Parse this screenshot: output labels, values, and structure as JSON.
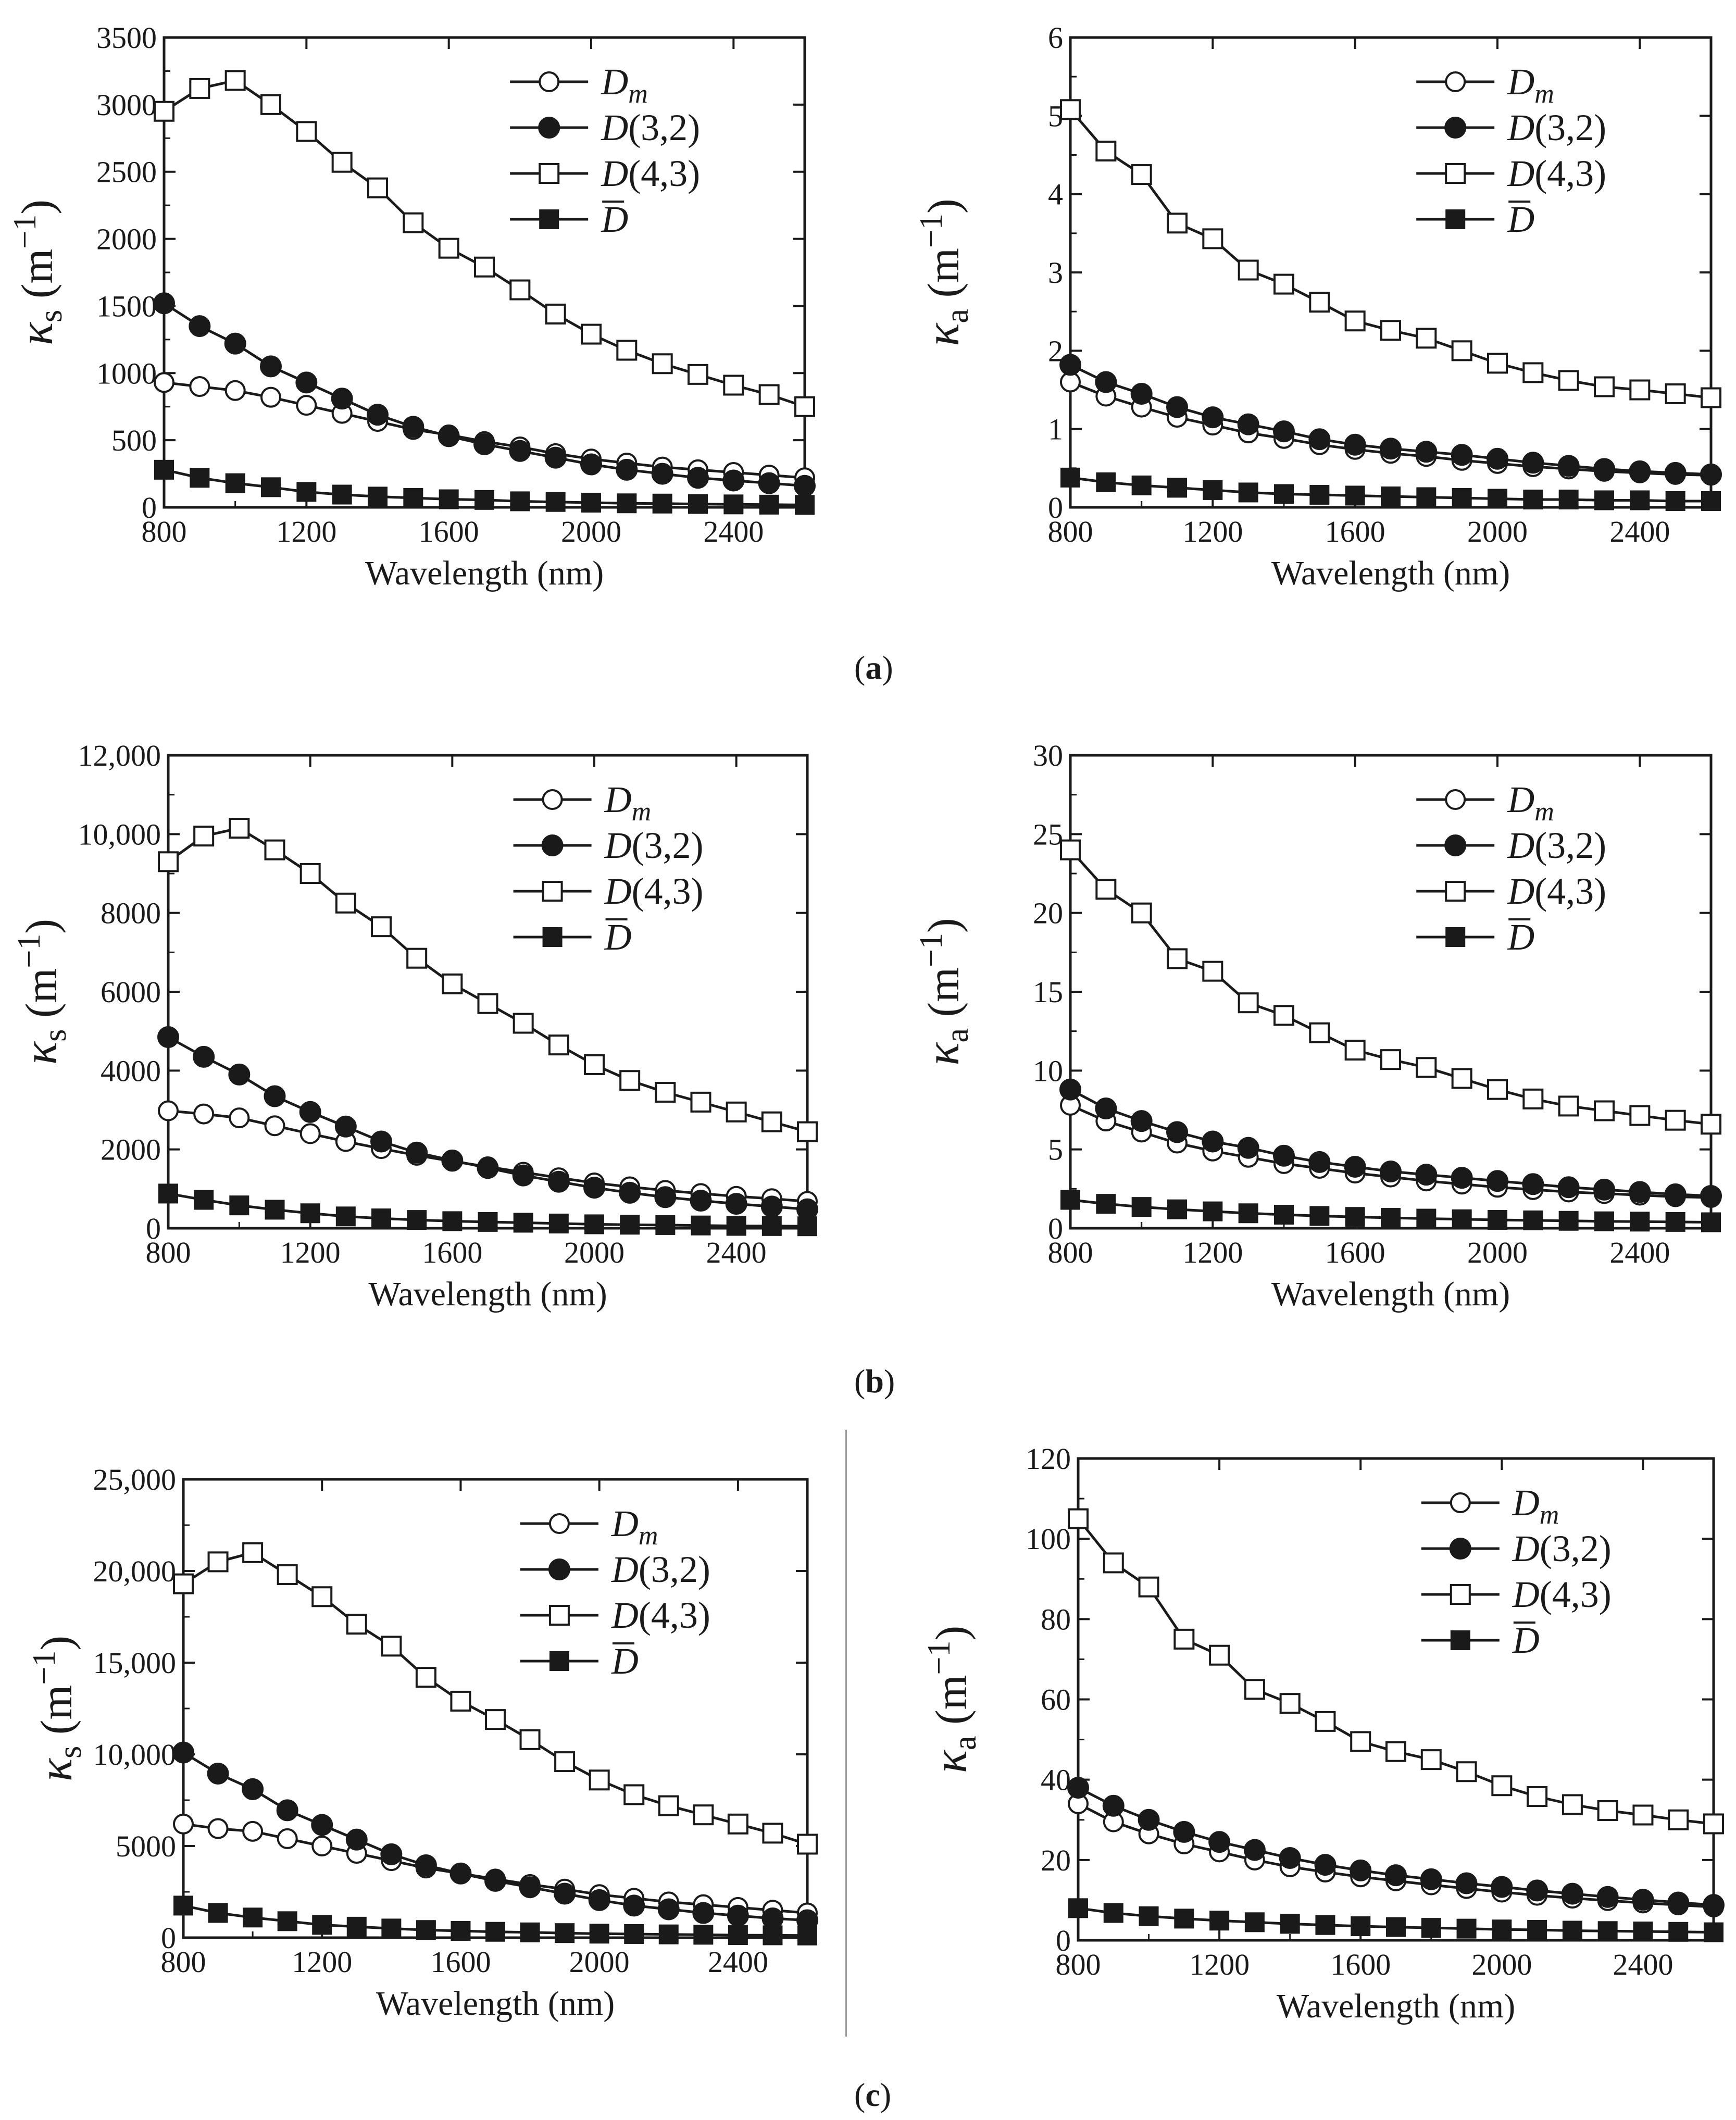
{
  "x_label": "Wavelength (nm)",
  "y_labels": {
    "scattering": {
      "symbol": "κ",
      "sub": "s",
      "unit": "(m",
      "exp": "−1",
      "close": ")"
    },
    "absorption": {
      "symbol": "κ",
      "sub": "a",
      "unit": "(m",
      "exp": "−1",
      "close": ")"
    }
  },
  "legend": [
    {
      "label": "D",
      "suffix": "m",
      "style": "italic-sub",
      "marker": "open-circle"
    },
    {
      "label": "D",
      "suffix": "(3,2)",
      "style": "plain-suffix",
      "marker": "filled-circle"
    },
    {
      "label": "D",
      "suffix": "(4,3)",
      "style": "plain-suffix",
      "marker": "open-square"
    },
    {
      "label": "D",
      "suffix": "",
      "style": "overline",
      "marker": "filled-square"
    }
  ],
  "panel_labels": [
    "a",
    "b",
    "c"
  ],
  "colors": {
    "line": "#1a1a1a",
    "background": "#ffffff",
    "divider": "#9a9a9a"
  },
  "chart_data": [
    {
      "id": "a-left",
      "type": "line",
      "panel": "a",
      "quantity": "scattering",
      "xlim": [
        800,
        2600
      ],
      "ylim": [
        0,
        3500
      ],
      "xticks": [
        800,
        1200,
        1600,
        2000,
        2400
      ],
      "yticks": [
        0,
        500,
        1000,
        1500,
        2000,
        2500,
        3000,
        3500
      ],
      "ytick_labels": [
        "0",
        "500",
        "1000",
        "1500",
        "2000",
        "2500",
        "3000",
        "3500"
      ],
      "x": [
        800,
        900,
        1000,
        1100,
        1200,
        1300,
        1400,
        1500,
        1600,
        1700,
        1800,
        1900,
        2000,
        2100,
        2200,
        2300,
        2400,
        2500,
        2600
      ],
      "series": [
        {
          "name": "Dm",
          "values": [
            930,
            900,
            870,
            820,
            760,
            700,
            640,
            580,
            540,
            490,
            450,
            400,
            360,
            330,
            300,
            280,
            260,
            240,
            220
          ]
        },
        {
          "name": "D(3,2)",
          "values": [
            1520,
            1350,
            1220,
            1050,
            930,
            810,
            690,
            600,
            530,
            470,
            420,
            370,
            320,
            280,
            250,
            220,
            200,
            180,
            160
          ]
        },
        {
          "name": "D(4,3)",
          "values": [
            2950,
            3120,
            3180,
            3000,
            2800,
            2570,
            2380,
            2120,
            1930,
            1790,
            1620,
            1440,
            1290,
            1170,
            1070,
            990,
            910,
            840,
            750
          ]
        },
        {
          "name": "D-bar",
          "values": [
            280,
            220,
            180,
            150,
            115,
            95,
            80,
            70,
            60,
            55,
            45,
            40,
            35,
            30,
            28,
            25,
            22,
            20,
            18
          ]
        }
      ]
    },
    {
      "id": "a-right",
      "type": "line",
      "panel": "a",
      "quantity": "absorption",
      "xlim": [
        800,
        2600
      ],
      "ylim": [
        0,
        6
      ],
      "xticks": [
        800,
        1200,
        1600,
        2000,
        2400
      ],
      "yticks": [
        0,
        1,
        2,
        3,
        4,
        5,
        6
      ],
      "ytick_labels": [
        "0",
        "1",
        "2",
        "3",
        "4",
        "5",
        "6"
      ],
      "x": [
        800,
        900,
        1000,
        1100,
        1200,
        1300,
        1400,
        1500,
        1600,
        1700,
        1800,
        1900,
        2000,
        2100,
        2200,
        2300,
        2400,
        2500,
        2600
      ],
      "series": [
        {
          "name": "Dm",
          "values": [
            1.6,
            1.42,
            1.28,
            1.15,
            1.05,
            0.95,
            0.88,
            0.8,
            0.74,
            0.69,
            0.65,
            0.6,
            0.56,
            0.52,
            0.49,
            0.46,
            0.44,
            0.42,
            0.41
          ]
        },
        {
          "name": "D(3,2)",
          "values": [
            1.82,
            1.6,
            1.45,
            1.28,
            1.15,
            1.06,
            0.97,
            0.87,
            0.8,
            0.75,
            0.71,
            0.67,
            0.62,
            0.57,
            0.53,
            0.49,
            0.46,
            0.44,
            0.42
          ]
        },
        {
          "name": "D(4,3)",
          "values": [
            5.08,
            4.55,
            4.25,
            3.63,
            3.43,
            3.03,
            2.85,
            2.62,
            2.38,
            2.26,
            2.16,
            2.0,
            1.84,
            1.72,
            1.62,
            1.54,
            1.5,
            1.45,
            1.4
          ]
        },
        {
          "name": "D-bar",
          "values": [
            0.38,
            0.32,
            0.28,
            0.25,
            0.22,
            0.19,
            0.17,
            0.16,
            0.15,
            0.14,
            0.13,
            0.12,
            0.11,
            0.1,
            0.1,
            0.09,
            0.09,
            0.08,
            0.08
          ]
        }
      ]
    },
    {
      "id": "b-left",
      "type": "line",
      "panel": "b",
      "quantity": "scattering",
      "xlim": [
        800,
        2600
      ],
      "ylim": [
        0,
        12000
      ],
      "xticks": [
        800,
        1200,
        1600,
        2000,
        2400
      ],
      "yticks": [
        0,
        2000,
        4000,
        6000,
        8000,
        10000,
        12000
      ],
      "ytick_labels": [
        "0",
        "2000",
        "4000",
        "6000",
        "8000",
        "10,000",
        "12,000"
      ],
      "x": [
        800,
        900,
        1000,
        1100,
        1200,
        1300,
        1400,
        1500,
        1600,
        1700,
        1800,
        1900,
        2000,
        2100,
        2200,
        2300,
        2400,
        2500,
        2600
      ],
      "series": [
        {
          "name": "Dm",
          "values": [
            2980,
            2900,
            2800,
            2600,
            2400,
            2200,
            2020,
            1850,
            1700,
            1560,
            1420,
            1280,
            1150,
            1050,
            960,
            880,
            810,
            750,
            680
          ]
        },
        {
          "name": "D(3,2)",
          "values": [
            4850,
            4350,
            3900,
            3350,
            2950,
            2580,
            2200,
            1920,
            1720,
            1530,
            1340,
            1180,
            1030,
            900,
            790,
            700,
            620,
            550,
            480
          ]
        },
        {
          "name": "D(4,3)",
          "values": [
            9300,
            9950,
            10150,
            9600,
            9000,
            8250,
            7650,
            6850,
            6200,
            5700,
            5200,
            4650,
            4150,
            3750,
            3450,
            3200,
            2950,
            2700,
            2450
          ]
        },
        {
          "name": "D-bar",
          "values": [
            880,
            720,
            580,
            470,
            380,
            300,
            250,
            210,
            180,
            160,
            140,
            120,
            100,
            90,
            80,
            70,
            60,
            55,
            50
          ]
        }
      ]
    },
    {
      "id": "b-right",
      "type": "line",
      "panel": "b",
      "quantity": "absorption",
      "xlim": [
        800,
        2600
      ],
      "ylim": [
        0,
        30
      ],
      "xticks": [
        800,
        1200,
        1600,
        2000,
        2400
      ],
      "yticks": [
        0,
        5,
        10,
        15,
        20,
        25,
        30
      ],
      "ytick_labels": [
        "0",
        "5",
        "10",
        "15",
        "20",
        "25",
        "30"
      ],
      "x": [
        800,
        900,
        1000,
        1100,
        1200,
        1300,
        1400,
        1500,
        1600,
        1700,
        1800,
        1900,
        2000,
        2100,
        2200,
        2300,
        2400,
        2500,
        2600
      ],
      "series": [
        {
          "name": "Dm",
          "values": [
            7.8,
            6.8,
            6.1,
            5.4,
            4.9,
            4.5,
            4.1,
            3.8,
            3.5,
            3.25,
            3.0,
            2.8,
            2.6,
            2.45,
            2.3,
            2.2,
            2.1,
            2.0,
            1.95
          ]
        },
        {
          "name": "D(3,2)",
          "values": [
            8.8,
            7.6,
            6.8,
            6.1,
            5.5,
            5.1,
            4.6,
            4.2,
            3.9,
            3.6,
            3.4,
            3.2,
            3.0,
            2.8,
            2.6,
            2.45,
            2.3,
            2.15,
            2.05
          ]
        },
        {
          "name": "D(4,3)",
          "values": [
            24.0,
            21.5,
            20.0,
            17.1,
            16.3,
            14.3,
            13.5,
            12.4,
            11.3,
            10.7,
            10.2,
            9.5,
            8.8,
            8.2,
            7.75,
            7.45,
            7.15,
            6.85,
            6.6
          ]
        },
        {
          "name": "D-bar",
          "values": [
            1.8,
            1.55,
            1.35,
            1.2,
            1.07,
            0.95,
            0.86,
            0.78,
            0.72,
            0.66,
            0.61,
            0.57,
            0.53,
            0.5,
            0.47,
            0.44,
            0.42,
            0.4,
            0.38
          ]
        }
      ]
    },
    {
      "id": "c-left",
      "type": "line",
      "panel": "c",
      "quantity": "scattering",
      "xlim": [
        800,
        2600
      ],
      "ylim": [
        0,
        25000
      ],
      "xticks": [
        800,
        1200,
        1600,
        2000,
        2400
      ],
      "yticks": [
        0,
        5000,
        10000,
        15000,
        20000,
        25000
      ],
      "ytick_labels": [
        "0",
        "5000",
        "10,000",
        "15,000",
        "20,000",
        "25,000"
      ],
      "x": [
        800,
        900,
        1000,
        1100,
        1200,
        1300,
        1400,
        1500,
        1600,
        1700,
        1800,
        1900,
        2000,
        2100,
        2200,
        2300,
        2400,
        2500,
        2600
      ],
      "series": [
        {
          "name": "Dm",
          "values": [
            6200,
            5950,
            5800,
            5400,
            5000,
            4600,
            4200,
            3800,
            3500,
            3200,
            2900,
            2650,
            2350,
            2150,
            1950,
            1800,
            1650,
            1500,
            1350
          ]
        },
        {
          "name": "D(3,2)",
          "values": [
            10100,
            8950,
            8100,
            6950,
            6150,
            5350,
            4550,
            3950,
            3500,
            3100,
            2750,
            2400,
            2050,
            1750,
            1550,
            1350,
            1200,
            1050,
            950
          ]
        },
        {
          "name": "D(4,3)",
          "values": [
            19300,
            20500,
            21000,
            19800,
            18600,
            17100,
            15900,
            14200,
            12900,
            11900,
            10800,
            9600,
            8600,
            7800,
            7200,
            6700,
            6200,
            5700,
            5100
          ]
        },
        {
          "name": "D-bar",
          "values": [
            1750,
            1350,
            1100,
            900,
            700,
            600,
            500,
            420,
            370,
            320,
            290,
            250,
            220,
            200,
            180,
            160,
            140,
            130,
            120
          ]
        }
      ]
    },
    {
      "id": "c-right",
      "type": "line",
      "panel": "c",
      "quantity": "absorption",
      "xlim": [
        800,
        2600
      ],
      "ylim": [
        0,
        120
      ],
      "xticks": [
        800,
        1200,
        1600,
        2000,
        2400
      ],
      "yticks": [
        0,
        20,
        40,
        60,
        80,
        100,
        120
      ],
      "ytick_labels": [
        "0",
        "20",
        "40",
        "60",
        "80",
        "100",
        "120"
      ],
      "x": [
        800,
        900,
        1000,
        1100,
        1200,
        1300,
        1400,
        1500,
        1600,
        1700,
        1800,
        1900,
        2000,
        2100,
        2200,
        2300,
        2400,
        2500,
        2600
      ],
      "series": [
        {
          "name": "Dm",
          "values": [
            34.0,
            29.5,
            26.5,
            24.0,
            22.0,
            20.0,
            18.3,
            17.0,
            15.8,
            14.8,
            13.8,
            12.9,
            12.0,
            11.2,
            10.5,
            9.9,
            9.3,
            8.8,
            8.3
          ]
        },
        {
          "name": "D(3,2)",
          "values": [
            38.0,
            33.5,
            30.0,
            27.0,
            24.5,
            22.5,
            20.5,
            18.8,
            17.4,
            16.2,
            15.2,
            14.2,
            13.3,
            12.4,
            11.6,
            10.8,
            10.1,
            9.4,
            8.8
          ]
        },
        {
          "name": "D(4,3)",
          "values": [
            105.0,
            94.0,
            88.0,
            75.0,
            71.0,
            62.5,
            59.0,
            54.5,
            49.5,
            47.0,
            45.0,
            42.0,
            38.5,
            35.8,
            33.8,
            32.3,
            31.2,
            30.0,
            29.0
          ]
        },
        {
          "name": "D-bar",
          "values": [
            8.0,
            6.8,
            6.0,
            5.4,
            4.9,
            4.5,
            4.1,
            3.8,
            3.5,
            3.3,
            3.1,
            2.9,
            2.7,
            2.6,
            2.4,
            2.3,
            2.2,
            2.1,
            2.0
          ]
        }
      ]
    }
  ]
}
